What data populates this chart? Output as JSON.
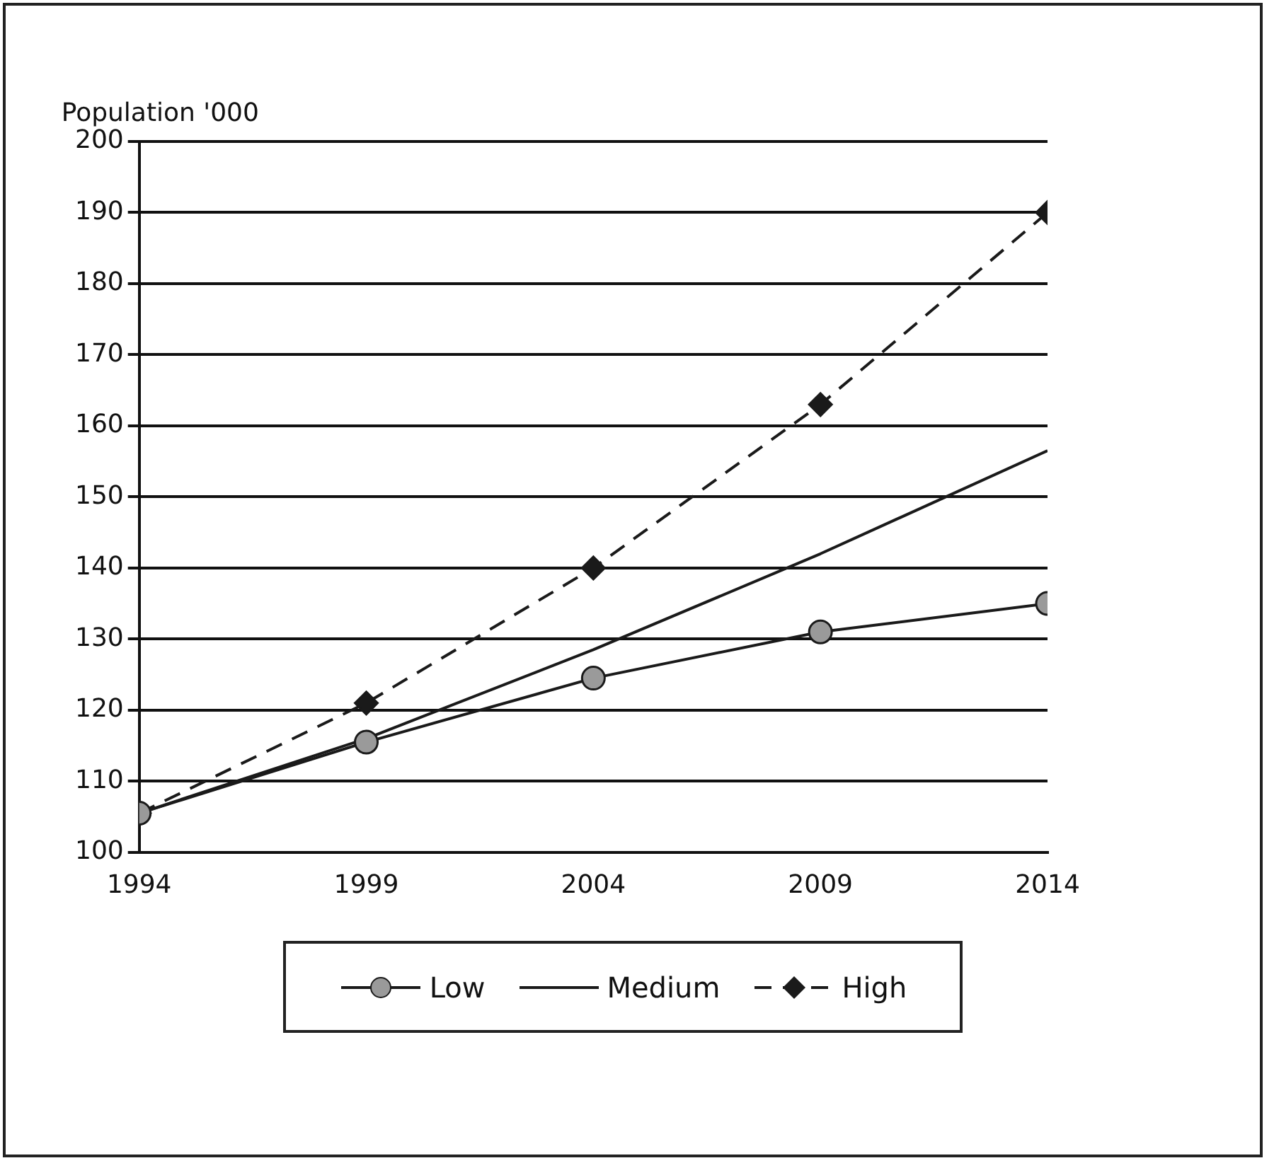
{
  "chart_data": {
    "type": "line",
    "ylabel": "Population '000",
    "x": [
      1994,
      1999,
      2004,
      2009,
      2014
    ],
    "xlim": [
      1994,
      2014
    ],
    "xticks": [
      1994,
      1999,
      2004,
      2009,
      2014
    ],
    "ylim": [
      100,
      200
    ],
    "yticks": [
      100,
      110,
      120,
      130,
      140,
      150,
      160,
      170,
      180,
      190,
      200
    ],
    "grid": "y",
    "legend": "bottom",
    "series": [
      {
        "name": "Low",
        "color": "#1a1a1a",
        "marker": "circle",
        "line_style": "solid",
        "values": [
          105.5,
          115.5,
          124.5,
          131,
          135
        ]
      },
      {
        "name": "Medium",
        "color": "#1a1a1a",
        "marker": "none",
        "line_style": "solid",
        "values": [
          105.5,
          116,
          128.5,
          142,
          156.5
        ]
      },
      {
        "name": "High",
        "color": "#1a1a1a",
        "marker": "diamond",
        "line_style": "dashed",
        "values": [
          105.5,
          121,
          140,
          163,
          190
        ]
      }
    ]
  }
}
